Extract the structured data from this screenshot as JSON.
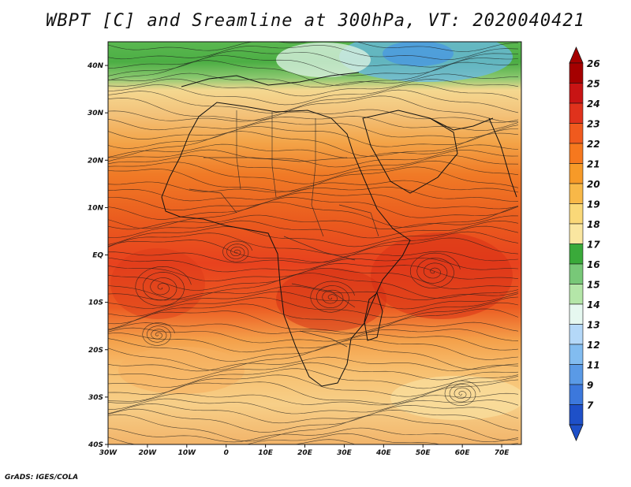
{
  "title": "WBPT [C] and Sreamline at 300hPa, VT: 2020040421",
  "footer": "GrADS: IGES/COLA",
  "map": {
    "lon_range": [
      -30,
      75
    ],
    "lat_range": [
      -40,
      45
    ],
    "lon_ticks": [
      "30W",
      "20W",
      "10W",
      "0",
      "10E",
      "20E",
      "30E",
      "40E",
      "50E",
      "60E",
      "70E"
    ],
    "lat_ticks": [
      "40N",
      "30N",
      "20N",
      "10N",
      "EQ",
      "10S",
      "20S",
      "30S",
      "40S"
    ]
  },
  "colorbar": {
    "labels": [
      "26",
      "25",
      "24",
      "23",
      "22",
      "21",
      "20",
      "19",
      "18",
      "17",
      "16",
      "15",
      "14",
      "13",
      "12",
      "11",
      "9",
      "7"
    ],
    "colors": [
      "#a50000",
      "#c81414",
      "#e0321c",
      "#f05a1e",
      "#f6781e",
      "#f79a28",
      "#f8b848",
      "#fad878",
      "#fae6a0",
      "#3aaa3a",
      "#78c878",
      "#b4e6a8",
      "#e6f8f0",
      "#b4d8f8",
      "#82bcf0",
      "#5a9ae6",
      "#3c78dc",
      "#1e50c8"
    ]
  }
}
